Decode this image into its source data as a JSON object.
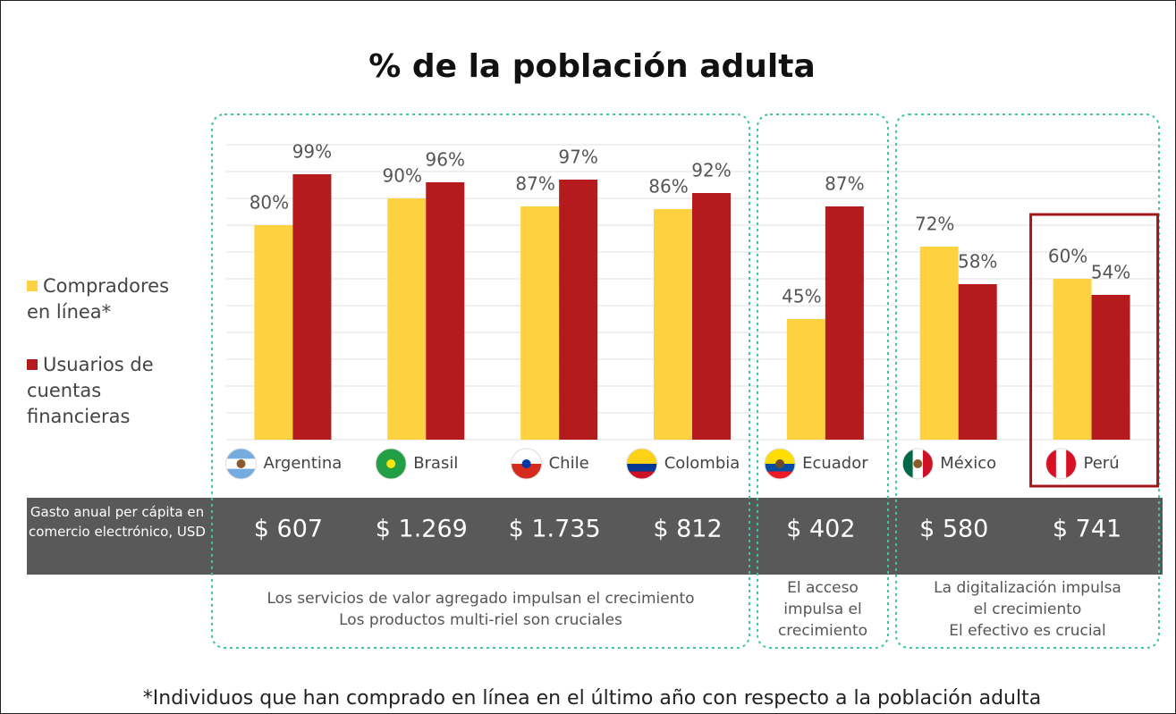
{
  "chart_data": {
    "type": "bar",
    "title": "% de la población adulta",
    "categories": [
      "Argentina",
      "Brasil",
      "Chile",
      "Colombia",
      "Ecuador",
      "México",
      "Perú"
    ],
    "series": [
      {
        "name": "Compradores en línea*",
        "color": "#fdd13f",
        "values": [
          80,
          90,
          87,
          86,
          45,
          72,
          60
        ],
        "value_labels": [
          "80%",
          "90%",
          "87%",
          "86%",
          "45%",
          "72%",
          "60%"
        ]
      },
      {
        "name": "Usuarios de cuentas financieras",
        "color": "#b51a1c",
        "values": [
          99,
          96,
          97,
          92,
          87,
          58,
          54
        ],
        "value_labels": [
          "99%",
          "96%",
          "97%",
          "92%",
          "87%",
          "58%",
          "54%"
        ]
      }
    ],
    "ylim": [
      0,
      110
    ],
    "yticks": [
      0,
      10,
      20,
      30,
      40,
      50,
      60,
      70,
      80,
      90,
      100,
      110
    ],
    "grid": true,
    "spending_title": "Gasto anual per cápita en comercio electrónico, USD",
    "spending": [
      "$ 607",
      "$ 1.269",
      "$ 1.735",
      "$ 812",
      "$ 402",
      "$ 580",
      "$ 741"
    ],
    "groups": [
      {
        "note": [
          "Los servicios de valor agregado impulsan el crecimiento",
          "Los productos multi-riel son cruciales"
        ]
      },
      {
        "note": [
          "El acceso",
          "impulsa el",
          "crecimiento"
        ]
      },
      {
        "note": [
          "La digitalización impulsa",
          "el crecimiento",
          "El efectivo es crucial"
        ]
      }
    ],
    "footnote": "*Individuos que han comprado en línea en el último año con respecto a la población adulta"
  }
}
